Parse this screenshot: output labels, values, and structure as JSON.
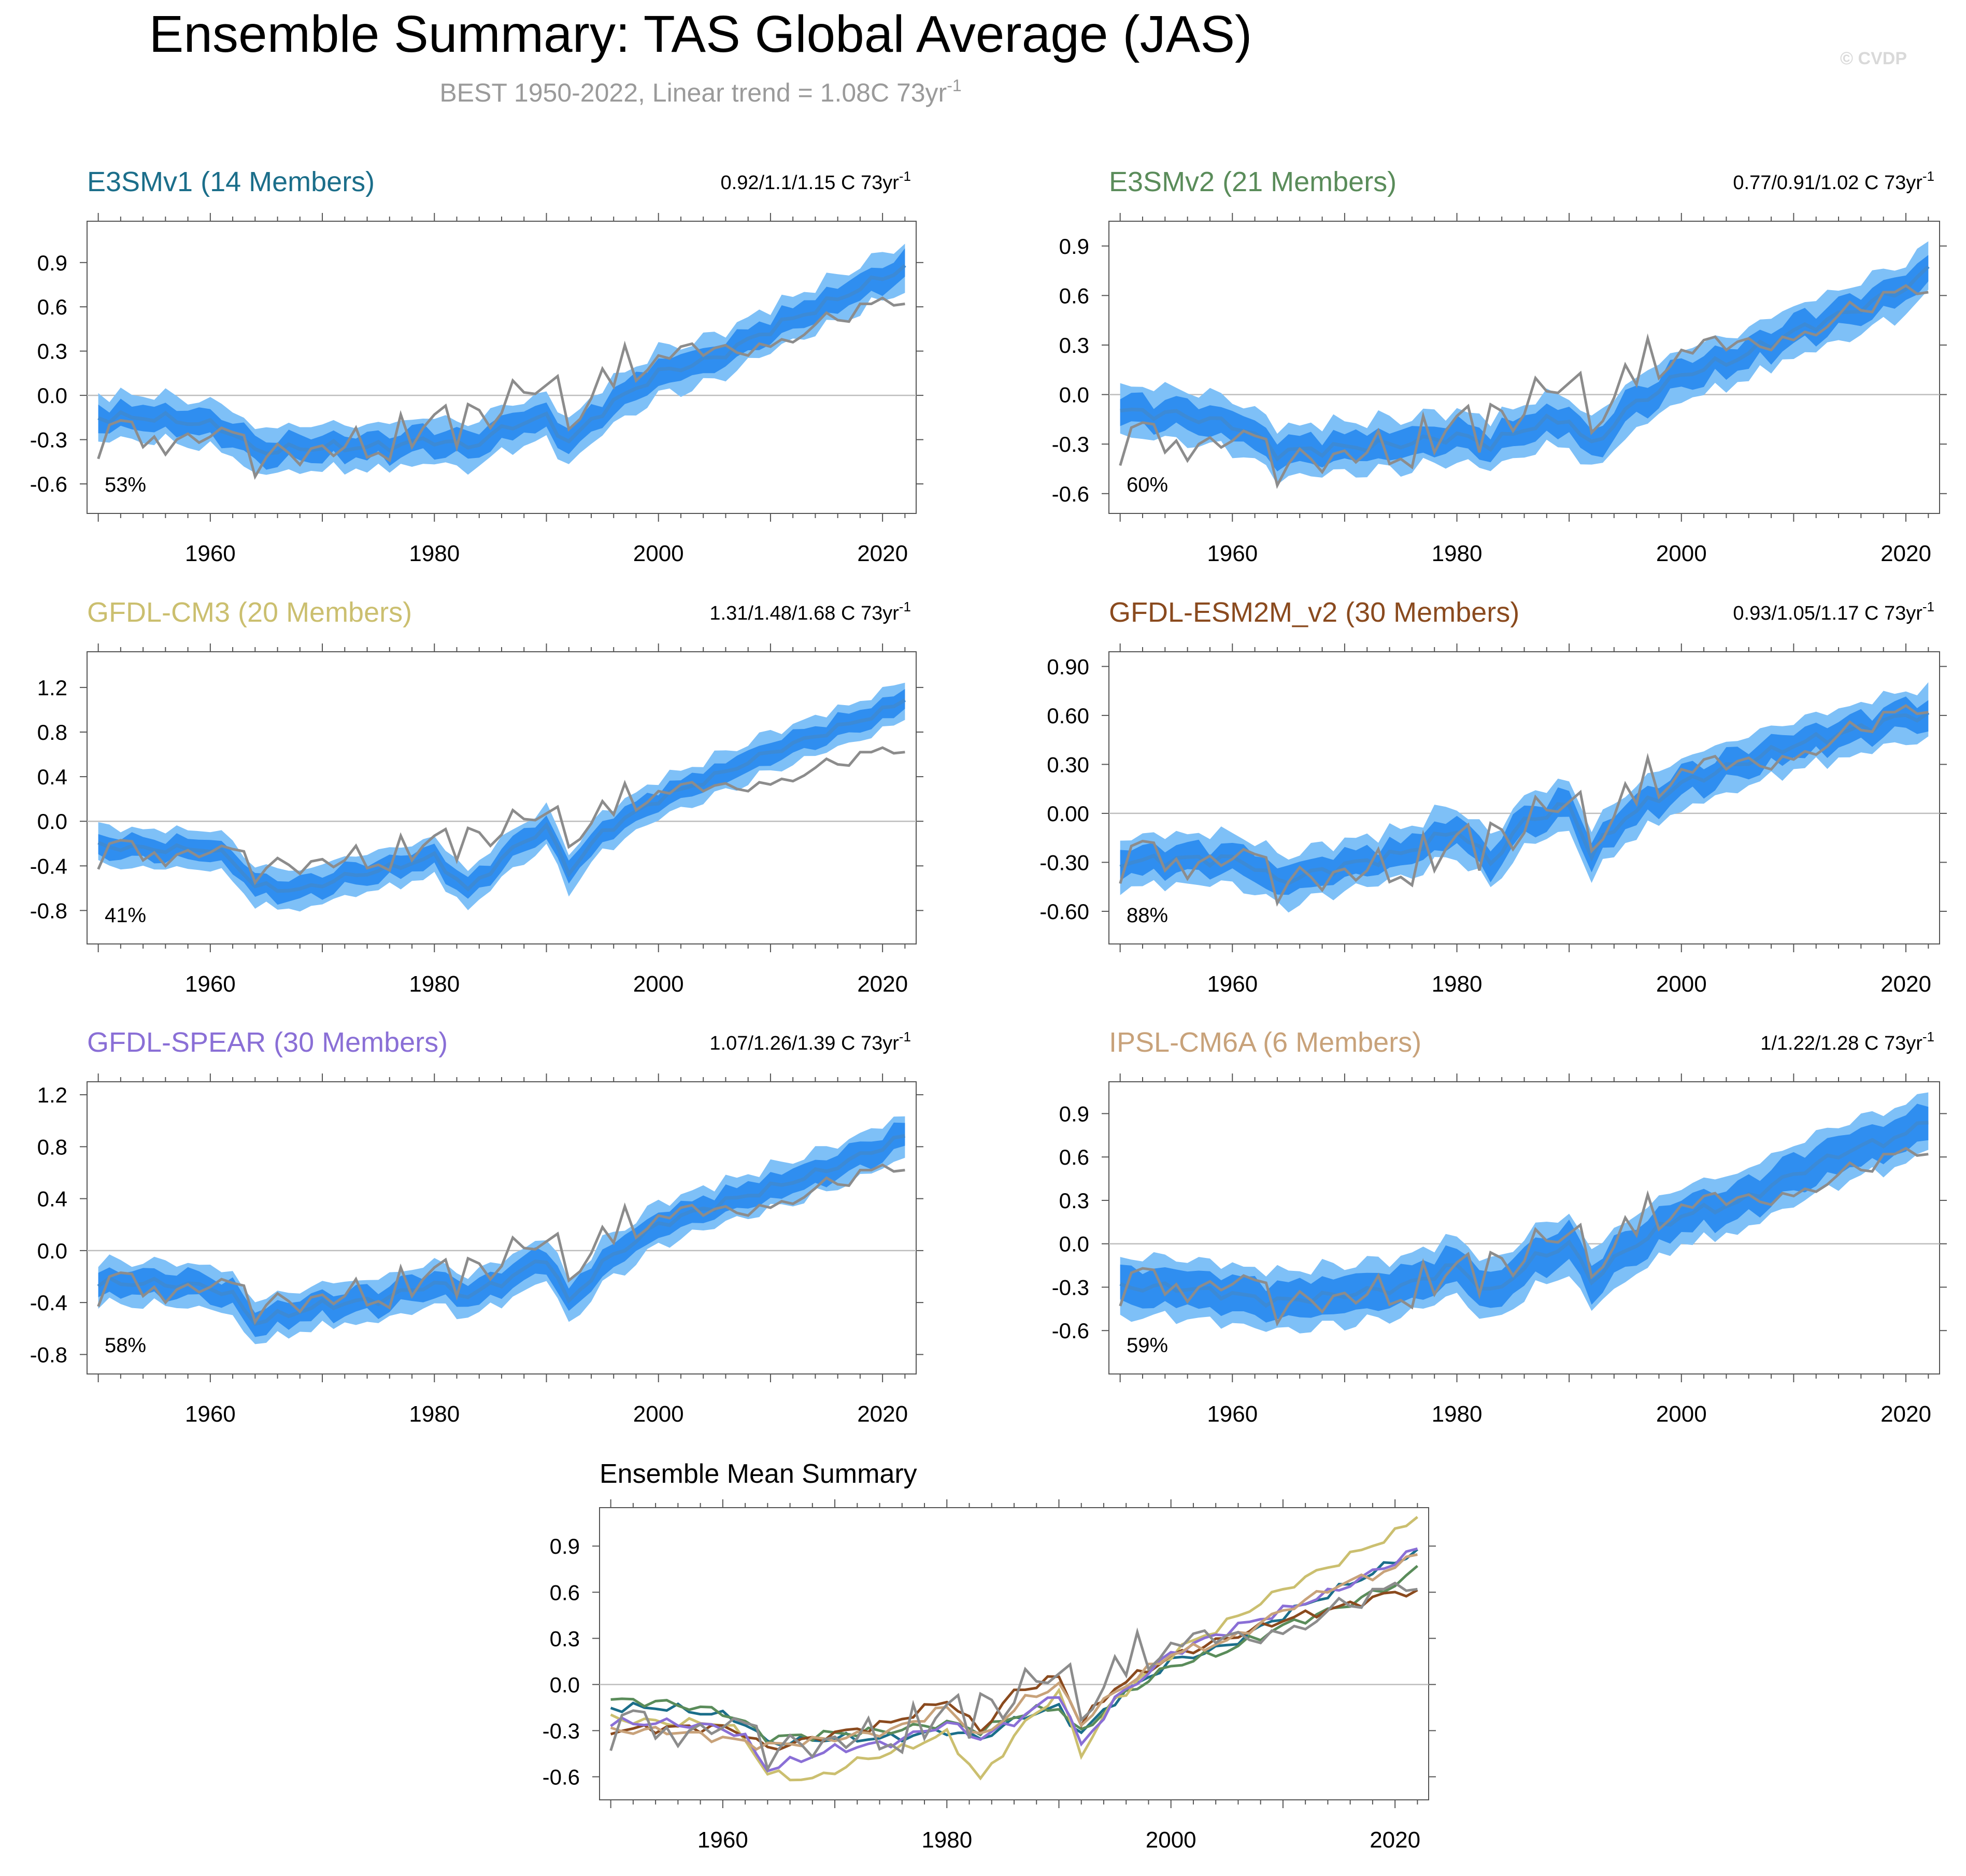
{
  "title": "Ensemble Summary: TAS Global Average (JAS)",
  "subtitle": "BEST 1950-2022, Linear trend = 1.08C 73yr",
  "subtitle_sup": "-1",
  "watermark": "© CVDP",
  "colors": {
    "obs": "#8c8c8c",
    "band_outer": "#7ec0f7",
    "band_inner": "#2f8ef0",
    "mean_line": "#3c8ad6",
    "zero_line": "#bdbdbd"
  },
  "chart_data": [
    {
      "type": "area",
      "title": "E3SMv1 (14 Members)",
      "title_color": "#1b6e8a",
      "trend_label": "0.92/1.1/1.15 C 73yr",
      "trend_sup": "-1",
      "percent_label": "53%",
      "x_range": [
        1949,
        2023
      ],
      "ylim": [
        -0.8,
        1.18
      ],
      "yticks": [
        "-0.6",
        "-0.3",
        "0.0",
        "0.3",
        "0.6",
        "0.9"
      ],
      "xticks": [
        "1960",
        "1980",
        "2000",
        "2020"
      ],
      "anchors": [
        [
          1950,
          -0.15
        ],
        [
          1955,
          -0.15
        ],
        [
          1960,
          -0.2
        ],
        [
          1962,
          -0.25
        ],
        [
          1964,
          -0.38
        ],
        [
          1970,
          -0.35
        ],
        [
          1975,
          -0.35
        ],
        [
          1980,
          -0.3
        ],
        [
          1983,
          -0.35
        ],
        [
          1987,
          -0.2
        ],
        [
          1990,
          -0.15
        ],
        [
          1992,
          -0.32
        ],
        [
          1995,
          -0.1
        ],
        [
          2000,
          0.15
        ],
        [
          2005,
          0.25
        ],
        [
          2010,
          0.45
        ],
        [
          2015,
          0.62
        ],
        [
          2020,
          0.8
        ],
        [
          2022,
          0.87
        ]
      ],
      "inner_half": 0.06,
      "outer_half": 0.13
    },
    {
      "type": "area",
      "title": "E3SMv2 (21 Members)",
      "title_color": "#5a8c5a",
      "trend_label": "0.77/0.91/1.02 C 73yr",
      "trend_sup": "-1",
      "percent_label": "60%",
      "x_range": [
        1949,
        2023
      ],
      "ylim": [
        -0.72,
        1.05
      ],
      "yticks": [
        "-0.6",
        "-0.3",
        "0.0",
        "0.3",
        "0.6",
        "0.9"
      ],
      "xticks": [
        "1960",
        "1980",
        "2000",
        "2020"
      ],
      "anchors": [
        [
          1950,
          -0.1
        ],
        [
          1955,
          -0.12
        ],
        [
          1960,
          -0.18
        ],
        [
          1962,
          -0.25
        ],
        [
          1964,
          -0.35
        ],
        [
          1970,
          -0.32
        ],
        [
          1975,
          -0.3
        ],
        [
          1980,
          -0.25
        ],
        [
          1983,
          -0.3
        ],
        [
          1987,
          -0.18
        ],
        [
          1990,
          -0.15
        ],
        [
          1992,
          -0.32
        ],
        [
          1995,
          -0.1
        ],
        [
          2000,
          0.12
        ],
        [
          2005,
          0.22
        ],
        [
          2010,
          0.38
        ],
        [
          2015,
          0.5
        ],
        [
          2020,
          0.65
        ],
        [
          2022,
          0.75
        ]
      ],
      "inner_half": 0.06,
      "outer_half": 0.13
    },
    {
      "type": "area",
      "title": "GFDL-CM3 (20 Members)",
      "title_color": "#cbbf6f",
      "trend_label": "1.31/1.48/1.68 C 73yr",
      "trend_sup": "-1",
      "percent_label": "41%",
      "x_range": [
        1949,
        2023
      ],
      "ylim": [
        -1.1,
        1.52
      ],
      "yticks": [
        "-0.8",
        "-0.4",
        "0.0",
        "0.4",
        "0.8",
        "1.2"
      ],
      "xticks": [
        "1960",
        "1980",
        "2000",
        "2020"
      ],
      "anchors": [
        [
          1950,
          -0.22
        ],
        [
          1955,
          -0.25
        ],
        [
          1960,
          -0.25
        ],
        [
          1962,
          -0.35
        ],
        [
          1964,
          -0.58
        ],
        [
          1968,
          -0.62
        ],
        [
          1972,
          -0.5
        ],
        [
          1976,
          -0.42
        ],
        [
          1980,
          -0.32
        ],
        [
          1983,
          -0.62
        ],
        [
          1987,
          -0.25
        ],
        [
          1990,
          -0.05
        ],
        [
          1992,
          -0.45
        ],
        [
          1995,
          -0.1
        ],
        [
          2000,
          0.2
        ],
        [
          2005,
          0.4
        ],
        [
          2010,
          0.62
        ],
        [
          2015,
          0.8
        ],
        [
          2020,
          0.98
        ],
        [
          2022,
          1.1
        ]
      ],
      "inner_half": 0.07,
      "outer_half": 0.15
    },
    {
      "type": "area",
      "title": "GFDL-ESM2M_v2 (30 Members)",
      "title_color": "#8a4a1e",
      "trend_label": "0.93/1.05/1.17 C 73yr",
      "trend_sup": "-1",
      "percent_label": "88%",
      "x_range": [
        1949,
        2023
      ],
      "ylim": [
        -0.8,
        0.99
      ],
      "yticks": [
        "-0.60",
        "-0.30",
        "0.00",
        "0.30",
        "0.60",
        "0.90"
      ],
      "xticks": [
        "1960",
        "1980",
        "2000",
        "2020"
      ],
      "anchors": [
        [
          1950,
          -0.3
        ],
        [
          1955,
          -0.28
        ],
        [
          1960,
          -0.28
        ],
        [
          1962,
          -0.32
        ],
        [
          1964,
          -0.42
        ],
        [
          1970,
          -0.32
        ],
        [
          1975,
          -0.25
        ],
        [
          1980,
          -0.1
        ],
        [
          1983,
          -0.3
        ],
        [
          1986,
          -0.05
        ],
        [
          1990,
          0.05
        ],
        [
          1992,
          -0.25
        ],
        [
          1995,
          -0.02
        ],
        [
          2000,
          0.18
        ],
        [
          2005,
          0.3
        ],
        [
          2010,
          0.42
        ],
        [
          2015,
          0.5
        ],
        [
          2020,
          0.6
        ],
        [
          2022,
          0.6
        ]
      ],
      "inner_half": 0.06,
      "outer_half": 0.13
    },
    {
      "type": "area",
      "title": "GFDL-SPEAR (30 Members)",
      "title_color": "#8a6fd6",
      "trend_label": "1.07/1.26/1.39 C 73yr",
      "trend_sup": "-1",
      "percent_label": "58%",
      "x_range": [
        1949,
        2023
      ],
      "ylim": [
        -0.95,
        1.3
      ],
      "yticks": [
        "-0.8",
        "-0.4",
        "0.0",
        "0.4",
        "0.8",
        "1.2"
      ],
      "xticks": [
        "1960",
        "1980",
        "2000",
        "2020"
      ],
      "anchors": [
        [
          1950,
          -0.25
        ],
        [
          1955,
          -0.25
        ],
        [
          1960,
          -0.28
        ],
        [
          1962,
          -0.35
        ],
        [
          1964,
          -0.55
        ],
        [
          1970,
          -0.42
        ],
        [
          1975,
          -0.38
        ],
        [
          1980,
          -0.25
        ],
        [
          1983,
          -0.35
        ],
        [
          1987,
          -0.2
        ],
        [
          1990,
          -0.05
        ],
        [
          1992,
          -0.4
        ],
        [
          1995,
          -0.1
        ],
        [
          2000,
          0.2
        ],
        [
          2005,
          0.35
        ],
        [
          2010,
          0.48
        ],
        [
          2015,
          0.62
        ],
        [
          2020,
          0.8
        ],
        [
          2022,
          0.88
        ]
      ],
      "inner_half": 0.07,
      "outer_half": 0.14
    },
    {
      "type": "area",
      "title": "IPSL-CM6A (6 Members)",
      "title_color": "#c8a27a",
      "trend_label": "1/1.22/1.28 C 73yr",
      "trend_sup": "-1",
      "percent_label": "59%",
      "x_range": [
        1949,
        2023
      ],
      "ylim": [
        -0.9,
        1.12
      ],
      "yticks": [
        "-0.6",
        "-0.3",
        "0.0",
        "0.3",
        "0.6",
        "0.9"
      ],
      "xticks": [
        "1960",
        "1980",
        "2000",
        "2020"
      ],
      "anchors": [
        [
          1950,
          -0.3
        ],
        [
          1955,
          -0.3
        ],
        [
          1960,
          -0.35
        ],
        [
          1964,
          -0.4
        ],
        [
          1970,
          -0.35
        ],
        [
          1975,
          -0.3
        ],
        [
          1980,
          -0.15
        ],
        [
          1983,
          -0.35
        ],
        [
          1987,
          -0.1
        ],
        [
          1990,
          0.0
        ],
        [
          1992,
          -0.25
        ],
        [
          1995,
          -0.05
        ],
        [
          2000,
          0.2
        ],
        [
          2005,
          0.28
        ],
        [
          2010,
          0.48
        ],
        [
          2015,
          0.65
        ],
        [
          2020,
          0.75
        ],
        [
          2022,
          0.88
        ]
      ],
      "inner_half": 0.1,
      "outer_half": 0.18
    },
    {
      "type": "line",
      "title": "Ensemble Mean Summary",
      "x_range": [
        1949,
        2023
      ],
      "ylim": [
        -0.75,
        1.15
      ],
      "yticks": [
        "-0.6",
        "-0.3",
        "0.0",
        "0.3",
        "0.6",
        "0.9"
      ],
      "xticks": [
        "1960",
        "1980",
        "2000",
        "2020"
      ]
    }
  ],
  "observations": {
    "name": "BEST",
    "years": [
      1950,
      2022
    ],
    "values": [
      -0.43,
      -0.2,
      -0.17,
      -0.18,
      -0.35,
      -0.28,
      -0.4,
      -0.3,
      -0.26,
      -0.32,
      -0.28,
      -0.22,
      -0.25,
      -0.27,
      -0.55,
      -0.42,
      -0.33,
      -0.39,
      -0.47,
      -0.36,
      -0.34,
      -0.41,
      -0.35,
      -0.22,
      -0.42,
      -0.39,
      -0.44,
      -0.13,
      -0.35,
      -0.22,
      -0.13,
      -0.07,
      -0.35,
      -0.06,
      -0.1,
      -0.22,
      -0.12,
      0.1,
      0.02,
      0.01,
      0.07,
      0.13,
      -0.23,
      -0.16,
      -0.02,
      0.18,
      0.06,
      0.34,
      0.1,
      0.17,
      0.27,
      0.25,
      0.33,
      0.35,
      0.27,
      0.32,
      0.34,
      0.29,
      0.27,
      0.35,
      0.33,
      0.38,
      0.36,
      0.41,
      0.48,
      0.56,
      0.51,
      0.5,
      0.62,
      0.62,
      0.66,
      0.61,
      0.62
    ]
  }
}
